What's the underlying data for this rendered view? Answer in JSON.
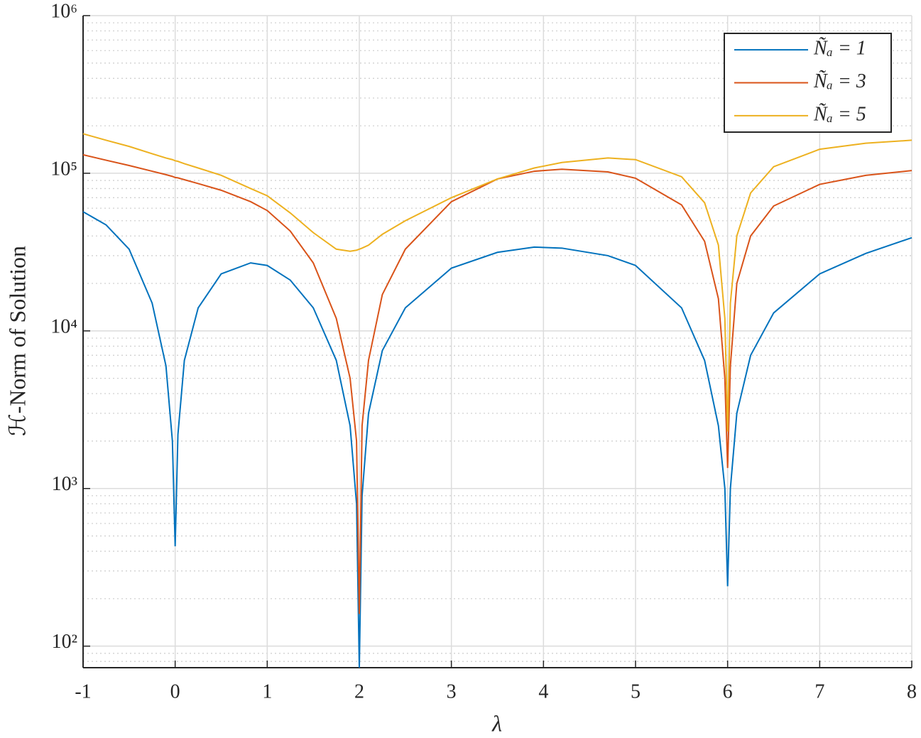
{
  "chart_data": {
    "type": "line",
    "xlabel": "λ",
    "ylabel": "ℋ-Norm of Solution",
    "x": [
      -1,
      -0.75,
      -0.5,
      -0.25,
      -0.1,
      -0.03,
      0,
      0.03,
      0.1,
      0.25,
      0.5,
      0.82,
      1,
      1.25,
      1.5,
      1.75,
      1.9,
      1.97,
      2,
      2.03,
      2.1,
      2.25,
      2.5,
      3,
      3.5,
      3.9,
      4.2,
      4.7,
      5,
      5.5,
      5.75,
      5.9,
      5.97,
      6,
      6.03,
      6.1,
      6.25,
      6.5,
      7,
      7.5,
      8
    ],
    "series": [
      {
        "name": "Ñₐ = 1",
        "color": "#0072bd",
        "values": [
          57000,
          47000,
          33000,
          15000,
          6000,
          2000,
          430,
          2200,
          6500,
          14000,
          23000,
          27000,
          26000,
          21000,
          14000,
          6500,
          2500,
          800,
          73,
          900,
          3000,
          7500,
          14000,
          25000,
          31500,
          34000,
          33500,
          30000,
          26000,
          14000,
          6500,
          2500,
          1000,
          240,
          1000,
          3000,
          7000,
          13000,
          23000,
          31000,
          39000
        ]
      },
      {
        "name": "Ñₐ = 3",
        "color": "#d95319",
        "values": [
          131000,
          121000,
          112000,
          103000,
          98000,
          95500,
          94000,
          93500,
          91000,
          86000,
          78000,
          66000,
          58000,
          43000,
          27000,
          12000,
          5000,
          2000,
          160,
          2500,
          6500,
          17000,
          33000,
          66000,
          92000,
          103000,
          106000,
          102000,
          93000,
          63000,
          37000,
          16000,
          5000,
          1350,
          6000,
          20000,
          40000,
          62000,
          85000,
          97000,
          104000
        ]
      },
      {
        "name": "Ñₐ = 5",
        "color": "#edb120",
        "values": [
          178000,
          162000,
          148000,
          133000,
          125000,
          122000,
          120000,
          119000,
          115000,
          108000,
          97000,
          80000,
          72000,
          56000,
          42000,
          33000,
          32000,
          32500,
          33000,
          33500,
          35000,
          41000,
          50000,
          70000,
          92000,
          108000,
          117000,
          125000,
          122000,
          95000,
          65000,
          35000,
          12000,
          2300,
          15000,
          40000,
          75000,
          110000,
          142000,
          155000,
          162000
        ]
      }
    ],
    "xlim": [
      -1,
      8
    ],
    "ylim": [
      73,
      1000000
    ],
    "xticks": [
      -1,
      0,
      1,
      2,
      3,
      4,
      5,
      6,
      7,
      8
    ],
    "yticks": [
      {
        "value": 100,
        "label": "10²"
      },
      {
        "value": 1000,
        "label": "10³"
      },
      {
        "value": 10000,
        "label": "10⁴"
      },
      {
        "value": 100000,
        "label": "10⁵"
      },
      {
        "value": 1000000,
        "label": "10⁶"
      }
    ],
    "log_y": true,
    "grid": true,
    "minor_grid": true,
    "legend": "northeast"
  }
}
